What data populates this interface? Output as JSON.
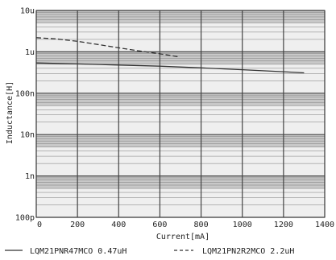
{
  "chart_data": {
    "type": "line",
    "xlabel": "Current[mA]",
    "ylabel": "Inductance[H]",
    "x_scale": "linear",
    "y_scale": "log",
    "xlim": [
      0,
      1400
    ],
    "ylim": [
      1e-10,
      1e-05
    ],
    "x_ticks": [
      0,
      200,
      400,
      600,
      800,
      1000,
      1200,
      1400
    ],
    "x_tick_labels": [
      "0",
      "200",
      "400",
      "600",
      "800",
      "1000",
      "1200",
      "1400"
    ],
    "y_ticks": [
      1e-10,
      1e-09,
      1e-08,
      1e-07,
      1e-06,
      1e-05
    ],
    "y_tick_labels": [
      "100p",
      "1n",
      "10n",
      "100n",
      "1u",
      "10u"
    ],
    "grid": true,
    "colors": {
      "background": "#ffffff",
      "band_light": "#efefef",
      "band_dark": "#c8c8c8",
      "grid_major": "#444444",
      "grid_minor": "#7a7a7a",
      "line": "#333333"
    },
    "series": [
      {
        "name": "LQM21PNR47MCO 0.47uH",
        "style": "solid",
        "x": [
          0,
          200,
          400,
          600,
          800,
          1000,
          1200,
          1300
        ],
        "y": [
          5.4e-07,
          5.1e-07,
          4.8e-07,
          4.5e-07,
          4.1e-07,
          3.7e-07,
          3.3e-07,
          3.1e-07
        ]
      },
      {
        "name": "LQM21PN2R2MCO 2.2uH",
        "style": "dashed",
        "x": [
          0,
          100,
          200,
          300,
          400,
          500,
          600,
          690
        ],
        "y": [
          2.2e-06,
          2.05e-06,
          1.8e-06,
          1.5e-06,
          1.25e-06,
          1.05e-06,
          9e-07,
          7.6e-07
        ]
      }
    ]
  }
}
